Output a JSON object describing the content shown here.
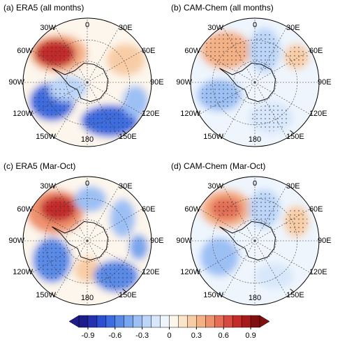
{
  "panels": [
    {
      "title": "(a) ERA5 (all months)"
    },
    {
      "title": "(b) CAM-Chem (all months)"
    },
    {
      "title": "(c) ERA5 (Mar-Oct)"
    },
    {
      "title": "(d) CAM-Chem (Mar-Oct)"
    }
  ],
  "longitude_labels": [
    "0",
    "30E",
    "60E",
    "90E",
    "120E",
    "150E",
    "180",
    "150W",
    "120W",
    "90W",
    "60W",
    "30W"
  ],
  "colorbar": {
    "lim": [
      -1.0,
      1.0
    ],
    "colors": [
      "#1c1c8a",
      "#2432b0",
      "#2c4ed0",
      "#3c6ce0",
      "#5a8ae8",
      "#7aa6ee",
      "#9cc0f4",
      "#bcd5f8",
      "#d8e7fb",
      "#eef5fd",
      "#fdf6ec",
      "#fbe4c8",
      "#f8cda6",
      "#f4b186",
      "#ee926e",
      "#e46e56",
      "#d64a40",
      "#c42c2a",
      "#a81a1a",
      "#801010"
    ],
    "ticks": [
      -0.9,
      -0.6,
      -0.3,
      0,
      0.3,
      0.6,
      0.9
    ]
  }
}
